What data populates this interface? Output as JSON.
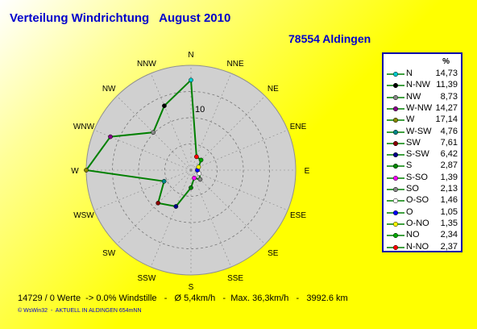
{
  "header": {
    "title": "Verteilung Windrichtung   August 2010",
    "station": "78554 Aldingen"
  },
  "chart_data": {
    "type": "radar",
    "unit": "%",
    "ring_label": "10",
    "directions": [
      "N",
      "NNE",
      "NE",
      "ENE",
      "E",
      "ESE",
      "SE",
      "SSE",
      "S",
      "SSW",
      "SW",
      "WSW",
      "W",
      "WNW",
      "NW",
      "NNW"
    ],
    "values": [
      14.73,
      2.37,
      2.34,
      1.35,
      1.05,
      1.46,
      2.13,
      1.39,
      2.87,
      6.42,
      7.61,
      4.76,
      17.14,
      14.27,
      8.73,
      11.39
    ],
    "rmax": 17.14,
    "rings": 4,
    "series_color": "#008000"
  },
  "legend": {
    "header": "%",
    "items": [
      {
        "dir": "N",
        "value": "14,73",
        "color": "#00cccc"
      },
      {
        "dir": "N-NW",
        "value": "11,39",
        "color": "#000000"
      },
      {
        "dir": "NW",
        "value": "8,73",
        "color": "#888888"
      },
      {
        "dir": "W-NW",
        "value": "14,27",
        "color": "#880088"
      },
      {
        "dir": "W",
        "value": "17,14",
        "color": "#888800"
      },
      {
        "dir": "W-SW",
        "value": "4,76",
        "color": "#008888"
      },
      {
        "dir": "SW",
        "value": "7,61",
        "color": "#880000"
      },
      {
        "dir": "S-SW",
        "value": "6,42",
        "color": "#000088"
      },
      {
        "dir": "S",
        "value": "2,87",
        "color": "#008800"
      },
      {
        "dir": "S-SO",
        "value": "1,39",
        "color": "#ff00ff"
      },
      {
        "dir": "SO",
        "value": "2,13",
        "color": "#888888"
      },
      {
        "dir": "O-SO",
        "value": "1,46",
        "color": "#ffffff"
      },
      {
        "dir": "O",
        "value": "1,05",
        "color": "#0000ff"
      },
      {
        "dir": "O-NO",
        "value": "1,35",
        "color": "#ffff00"
      },
      {
        "dir": "NO",
        "value": "2,34",
        "color": "#00aa00"
      },
      {
        "dir": "N-NO",
        "value": "2,37",
        "color": "#ff0000"
      }
    ]
  },
  "footer": {
    "stats": "14729 / 0 Werte  -> 0.0% Windstille   -   Ø 5,4km/h   -  Max. 36,3km/h   -   3992.6 km",
    "credit": "© WsWin32  -  AKTUELL IN ALDINGEN 654mNN"
  }
}
